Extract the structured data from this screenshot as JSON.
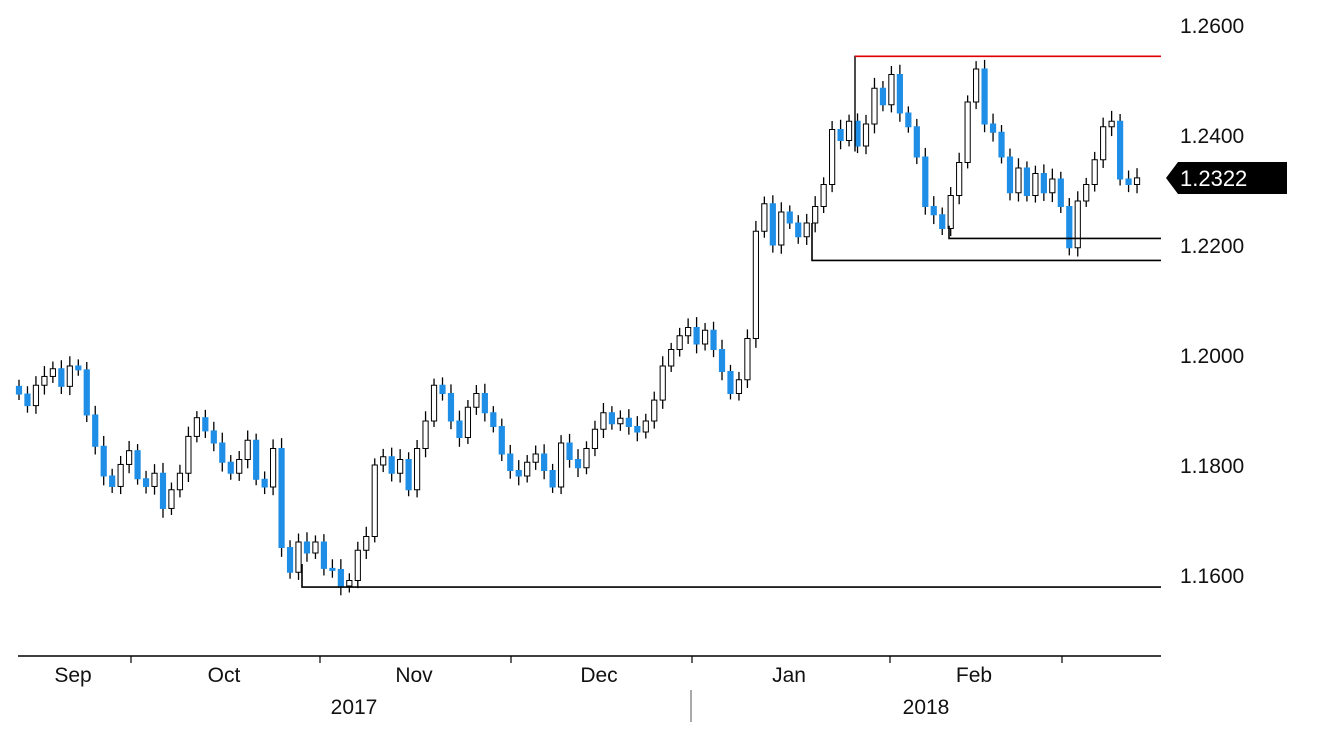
{
  "chart_data": {
    "type": "candlestick",
    "title": "",
    "xlabel": "",
    "ylabel": "",
    "ylim": [
      1.1475,
      1.2625
    ],
    "y_ticks": [
      "1.2600",
      "1.2400",
      "1.2200",
      "1.2000",
      "1.1800",
      "1.1600"
    ],
    "x_months": [
      "Sep",
      "Oct",
      "Nov",
      "Dec",
      "Jan",
      "Feb"
    ],
    "x_years": [
      "2017",
      "2018"
    ],
    "last_price": "1.2322",
    "colors": {
      "up": "#ffffff",
      "down": "#1e8ee6",
      "wick": "#000000",
      "resistance": "#e00000",
      "support": "#000000",
      "last_box": "#000000"
    },
    "start_close": 1.1943,
    "closes": [
      1.1929,
      1.1908,
      1.1945,
      1.1961,
      1.1975,
      1.1943,
      1.198,
      1.1973,
      1.1891,
      1.1834,
      1.178,
      1.1761,
      1.1801,
      1.1826,
      1.1775,
      1.1761,
      1.1785,
      1.1721,
      1.1755,
      1.1785,
      1.1852,
      1.1886,
      1.1862,
      1.184,
      1.1805,
      1.1785,
      1.181,
      1.1845,
      1.1774,
      1.176,
      1.183,
      1.165,
      1.1605,
      1.166,
      1.164,
      1.166,
      1.1612,
      1.161,
      1.158,
      1.159,
      1.1645,
      1.167,
      1.18,
      1.1815,
      1.1785,
      1.181,
      1.1755,
      1.183,
      1.188,
      1.1945,
      1.193,
      1.188,
      1.185,
      1.1905,
      1.193,
      1.1895,
      1.187,
      1.182,
      1.179,
      1.178,
      1.1805,
      1.182,
      1.179,
      1.176,
      1.184,
      1.181,
      1.1795,
      1.183,
      1.1865,
      1.1895,
      1.1875,
      1.1885,
      1.187,
      1.186,
      1.188,
      1.1918,
      1.198,
      1.201,
      1.2035,
      1.205,
      1.202,
      1.2045,
      1.201,
      1.197,
      1.193,
      1.1955,
      1.203,
      1.2225,
      1.2275,
      1.22,
      1.226,
      1.224,
      1.2215,
      1.224,
      1.227,
      1.231,
      1.241,
      1.239,
      1.2425,
      1.238,
      1.242,
      1.2485,
      1.2455,
      1.251,
      1.244,
      1.2415,
      1.236,
      1.227,
      1.2255,
      1.223,
      1.229,
      1.235,
      1.246,
      1.252,
      1.242,
      1.2405,
      1.236,
      1.2295,
      1.234,
      1.229,
      1.233,
      1.2295,
      1.232,
      1.227,
      1.2195,
      1.228,
      1.231,
      1.2355,
      1.2415,
      1.2425,
      1.232,
      1.231,
      1.2322
    ],
    "resistance": 1.2543,
    "support_levels": [
      1.2212,
      1.2172,
      1.1578
    ]
  }
}
